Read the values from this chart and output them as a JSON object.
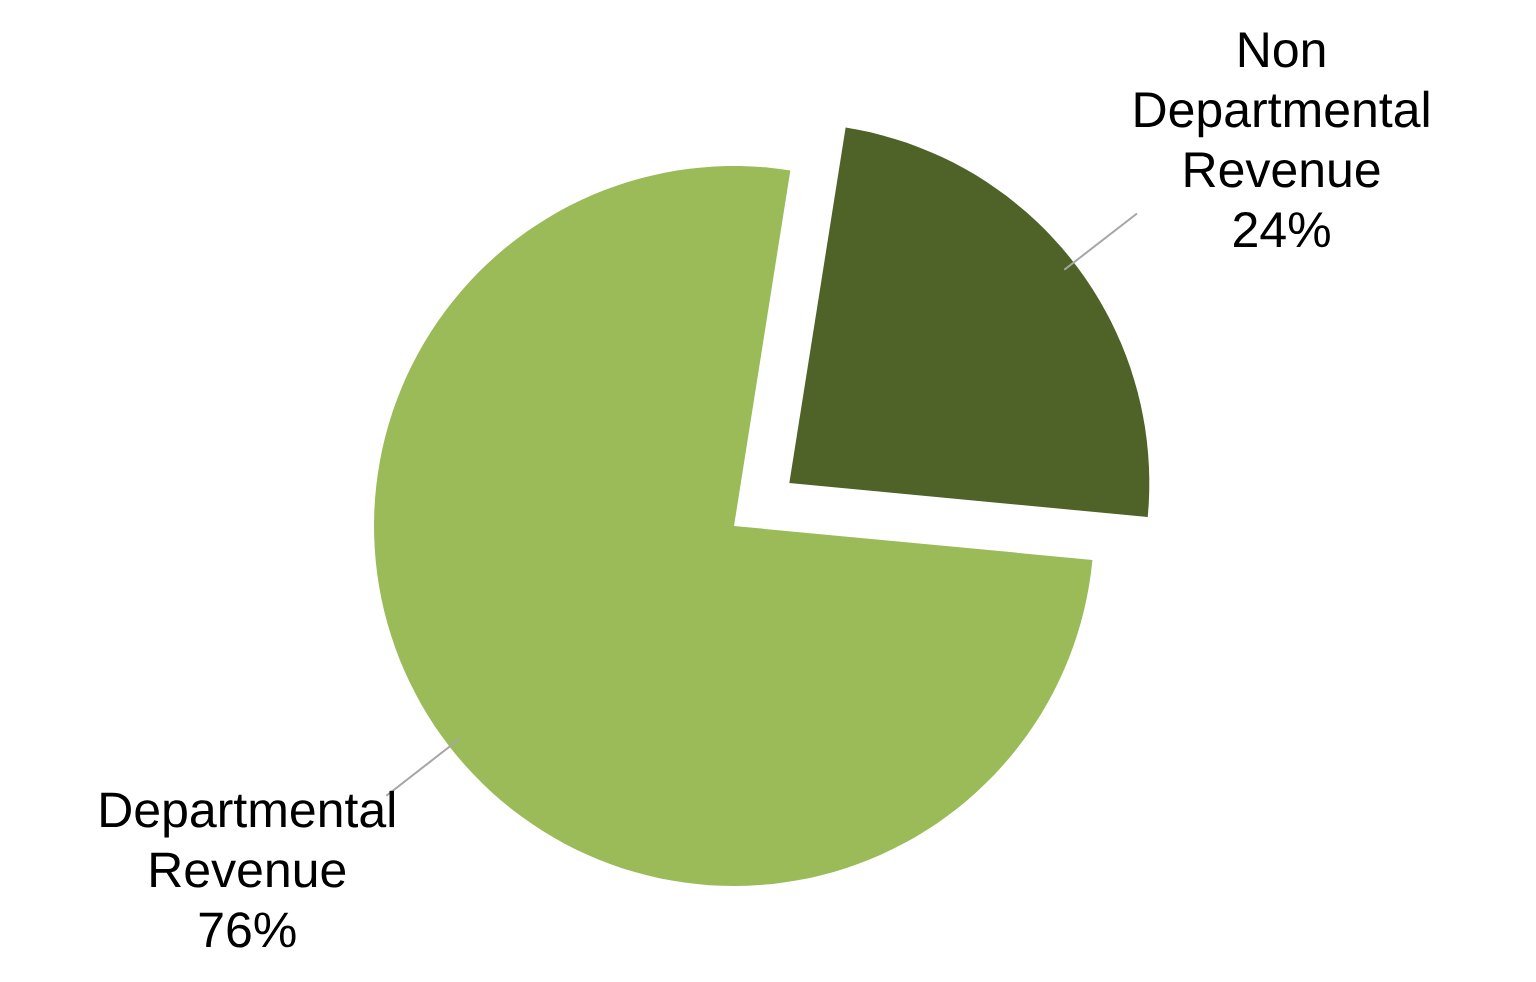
{
  "chart_data": {
    "type": "pie",
    "categories": [
      "Non Departmental Revenue",
      "Departmental Revenue"
    ],
    "values": [
      24,
      76
    ],
    "colors": [
      "#4f6228",
      "#9bbb59"
    ],
    "value_labels": [
      "24%",
      "76%"
    ]
  }
}
